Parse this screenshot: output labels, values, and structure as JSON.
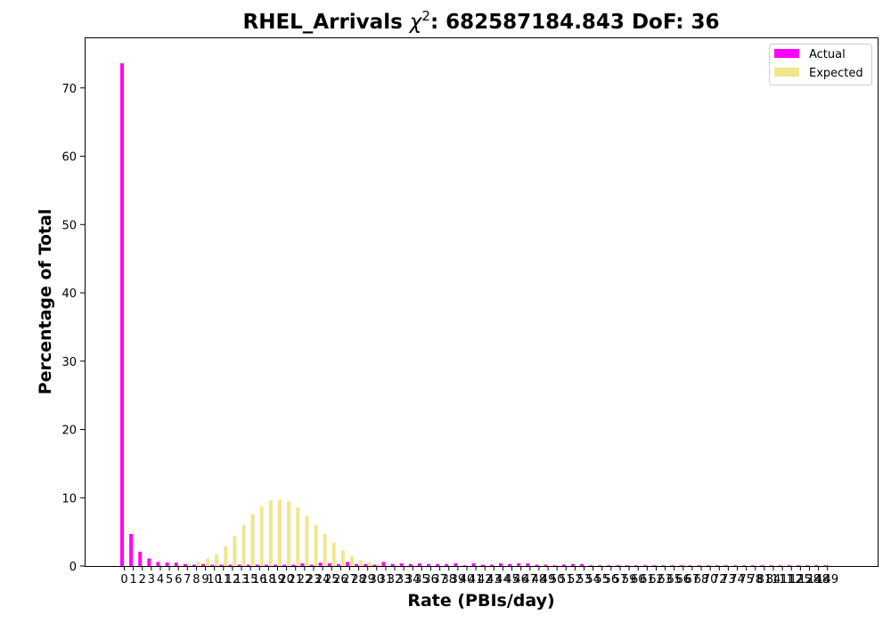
{
  "chart_data": {
    "type": "bar",
    "title": "RHEL_Arrivals χ²: 682587184.843 DoF: 36",
    "title_prefix": "RHEL_Arrivals ",
    "title_chi": "χ",
    "title_sup": "2",
    "title_suffix": ": 682587184.843 DoF: 36",
    "xlabel": "Rate (PBIs/day)",
    "ylabel": "Percentage of Total",
    "ylim": [
      0,
      77.4
    ],
    "yticks": [
      0,
      10,
      20,
      30,
      40,
      50,
      60,
      70
    ],
    "grid": false,
    "legend_position": "top-right",
    "categories": [
      "0",
      "1",
      "2",
      "3",
      "4",
      "5",
      "6",
      "7",
      "8",
      "9",
      "10",
      "11",
      "12",
      "13",
      "15",
      "16",
      "18",
      "19",
      "20",
      "21",
      "22",
      "23",
      "24",
      "25",
      "26",
      "27",
      "28",
      "29",
      "30",
      "31",
      "32",
      "33",
      "34",
      "35",
      "36",
      "37",
      "38",
      "39",
      "40",
      "41",
      "42",
      "43",
      "44",
      "45",
      "46",
      "47",
      "48",
      "49",
      "50",
      "51",
      "52",
      "53",
      "54",
      "55",
      "56",
      "57",
      "59",
      "60",
      "61",
      "62",
      "63",
      "65",
      "66",
      "67",
      "68",
      "70",
      "72",
      "73",
      "74",
      "75",
      "78",
      "81",
      "84",
      "111",
      "112",
      "125",
      "128",
      "148",
      "149"
    ],
    "series": [
      {
        "name": "Actual",
        "color": "#ff00ff",
        "values": [
          73.6,
          4.7,
          2.1,
          1.1,
          0.6,
          0.5,
          0.5,
          0.3,
          0.2,
          0.3,
          0.2,
          0.2,
          0.2,
          0.2,
          0.2,
          0.2,
          0.2,
          0.2,
          0.2,
          0.2,
          0.4,
          0.2,
          0.5,
          0.4,
          0.3,
          0.6,
          0.3,
          0.3,
          0.2,
          0.6,
          0.3,
          0.4,
          0.3,
          0.4,
          0.3,
          0.3,
          0.3,
          0.4,
          0.1,
          0.4,
          0.2,
          0.2,
          0.4,
          0.3,
          0.4,
          0.4,
          0.2,
          0.2,
          0.1,
          0.2,
          0.3,
          0.3,
          0.1,
          0.1,
          0.1,
          0.1,
          0.1,
          0.1,
          0.1,
          0.1,
          0.1,
          0.1,
          0.1,
          0.1,
          0.1,
          0.1,
          0.1,
          0.1,
          0.1,
          0.1,
          0.1,
          0.1,
          0.1,
          0.1,
          0.1,
          0.1,
          0.1,
          0.1,
          0.1
        ]
      },
      {
        "name": "Expected",
        "color": "#f0e68c",
        "values": [
          0.0,
          0.0,
          0.0,
          0.0,
          0.0,
          0.0,
          0.1,
          0.2,
          0.6,
          1.1,
          1.7,
          2.9,
          4.4,
          6.0,
          7.6,
          8.7,
          9.6,
          9.7,
          9.5,
          8.6,
          7.3,
          6.0,
          4.7,
          3.4,
          2.3,
          1.5,
          0.9,
          0.6,
          0.3,
          0.2,
          0.1,
          0.0,
          0.0,
          0.0,
          0.0,
          0.0,
          0.0,
          0.0,
          0.0,
          0.0,
          0.0,
          0.0,
          0.0,
          0.0,
          0.0,
          0.0,
          0.0,
          0.0,
          0.0,
          0.0,
          0.0,
          0.0,
          0.0,
          0.0,
          0.0,
          0.0,
          0.0,
          0.0,
          0.0,
          0.0,
          0.0,
          0.0,
          0.0,
          0.0,
          0.0,
          0.0,
          0.0,
          0.0,
          0.0,
          0.0,
          0.0,
          0.0,
          0.0,
          0.0,
          0.0,
          0.0,
          0.0,
          0.0,
          0.0
        ]
      }
    ]
  }
}
